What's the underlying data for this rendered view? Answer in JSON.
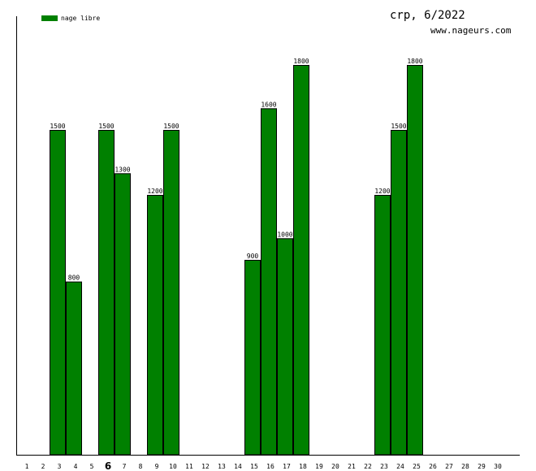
{
  "chart_data": {
    "type": "bar",
    "title": "crp, 6/2022",
    "subtitle": "www.nageurs.com",
    "xlabel": "",
    "ylabel": "",
    "ylim": [
      0,
      1800
    ],
    "grid": false,
    "legend_position": "top-left",
    "highlight_category": "6",
    "categories": [
      "1",
      "2",
      "3",
      "4",
      "5",
      "6",
      "7",
      "8",
      "9",
      "10",
      "11",
      "12",
      "13",
      "14",
      "15",
      "16",
      "17",
      "18",
      "19",
      "20",
      "21",
      "22",
      "23",
      "24",
      "25",
      "26",
      "27",
      "28",
      "29",
      "30"
    ],
    "series": [
      {
        "name": "nage libre",
        "color": "#008000",
        "values": [
          0,
          0,
          1500,
          800,
          0,
          1500,
          1300,
          0,
          1200,
          1500,
          0,
          0,
          0,
          0,
          900,
          1600,
          1000,
          1800,
          0,
          0,
          0,
          0,
          1200,
          1500,
          1800,
          0,
          0,
          0,
          0,
          0
        ]
      }
    ]
  }
}
